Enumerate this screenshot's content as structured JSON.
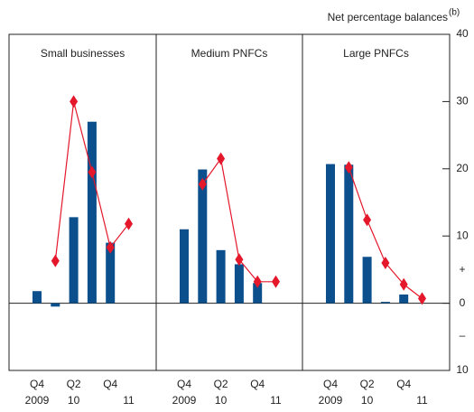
{
  "chart_data": [
    {
      "type": "bar_line",
      "title": "Small businesses",
      "categories": [
        "Q4",
        null,
        "Q2",
        null,
        "Q4",
        null
      ],
      "years": [
        "2009",
        null,
        "10",
        null,
        null,
        "11"
      ],
      "series": [
        {
          "type": "bar",
          "color": "#0b4f8c",
          "values": [
            1.8,
            -0.5,
            12.8,
            27,
            9,
            null
          ]
        },
        {
          "type": "line",
          "color": "#e4172b",
          "values": [
            null,
            6.3,
            30,
            19.5,
            8.3,
            11.8
          ]
        }
      ],
      "ylim": [
        -10,
        40
      ]
    },
    {
      "type": "bar_line",
      "title": "Medium PNFCs",
      "categories": [
        "Q4",
        null,
        "Q2",
        null,
        "Q4",
        null
      ],
      "years": [
        "2009",
        null,
        "10",
        null,
        null,
        "11"
      ],
      "series": [
        {
          "type": "bar",
          "color": "#0b4f8c",
          "values": [
            11,
            19.9,
            7.9,
            5.8,
            3,
            null
          ]
        },
        {
          "type": "line",
          "color": "#e4172b",
          "values": [
            null,
            17.7,
            21.5,
            6.5,
            3.2,
            3.2
          ]
        }
      ],
      "ylim": [
        -10,
        40
      ]
    },
    {
      "type": "bar_line",
      "title": "Large PNFCs",
      "categories": [
        "Q4",
        null,
        "Q2",
        null,
        "Q4",
        null
      ],
      "years": [
        "2009",
        null,
        "10",
        null,
        null,
        "11"
      ],
      "series": [
        {
          "type": "bar",
          "color": "#0b4f8c",
          "values": [
            20.7,
            20.6,
            6.9,
            0.2,
            1.3,
            null
          ]
        },
        {
          "type": "line",
          "color": "#e4172b",
          "values": [
            null,
            20.2,
            12.4,
            6,
            2.8,
            0.7
          ]
        }
      ],
      "ylim": [
        -10,
        40
      ],
      "yticks": [
        {
          "value": -10,
          "label": "10"
        },
        0,
        10,
        20,
        30,
        40
      ],
      "y_axis_label": "Net percentage balances",
      "y_axis_label_note": "(b)",
      "positive_sign": "+",
      "negative_sign": "–"
    }
  ]
}
